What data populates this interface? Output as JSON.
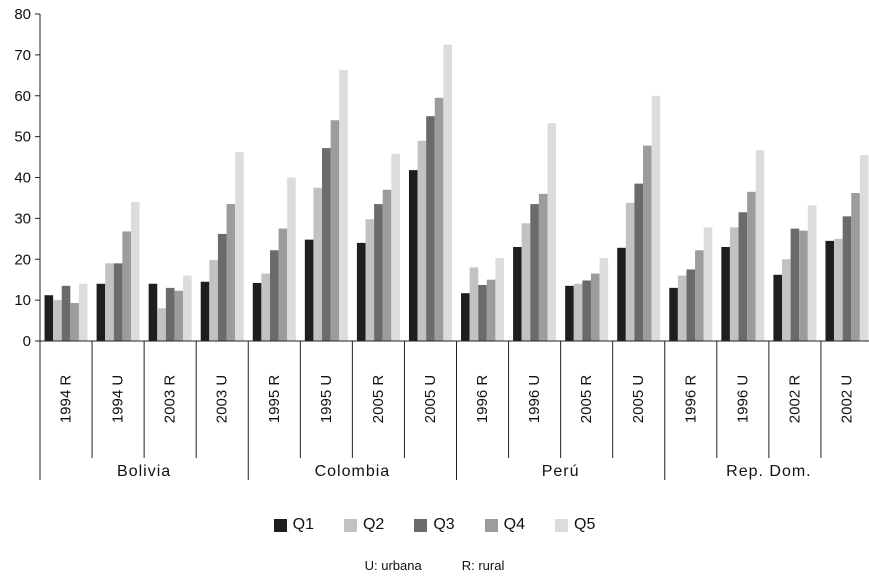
{
  "chart_data": {
    "type": "bar",
    "ylim": [
      0,
      80
    ],
    "yticks": [
      0,
      10,
      20,
      30,
      40,
      50,
      60,
      70,
      80
    ],
    "groups": [
      {
        "name": "Bolivia",
        "subgroups": [
          "1994 R",
          "1994 U",
          "2003 R",
          "2003 U"
        ]
      },
      {
        "name": "Colombia",
        "subgroups": [
          "1995 R",
          "1995 U",
          "2005 R",
          "2005 U"
        ]
      },
      {
        "name": "Perú",
        "subgroups": [
          "1996 R",
          "1996 U",
          "2005 R",
          "2005 U"
        ]
      },
      {
        "name": "Rep. Dom.",
        "subgroups": [
          "1996 R",
          "1996 U",
          "2002 R",
          "2002 U"
        ]
      }
    ],
    "series": [
      {
        "name": "Q1",
        "color": "#1e1e1e",
        "values": [
          11.2,
          14.0,
          14.0,
          14.5,
          14.2,
          24.8,
          24.0,
          41.8,
          11.7,
          23.0,
          13.5,
          22.8,
          13.0,
          23.0,
          16.2,
          24.5
        ]
      },
      {
        "name": "Q2",
        "color": "#c2c2c2",
        "values": [
          10.0,
          19.0,
          8.0,
          19.8,
          16.5,
          37.5,
          29.8,
          49.0,
          18.0,
          28.8,
          14.0,
          33.8,
          16.0,
          27.8,
          20.0,
          25.0
        ]
      },
      {
        "name": "Q3",
        "color": "#6b6b6b",
        "values": [
          13.5,
          19.0,
          13.0,
          26.2,
          22.2,
          47.2,
          33.5,
          55.0,
          13.7,
          33.5,
          14.8,
          38.5,
          17.5,
          31.5,
          27.5,
          30.5
        ]
      },
      {
        "name": "Q4",
        "color": "#9c9c9c",
        "values": [
          9.3,
          26.8,
          12.3,
          33.5,
          27.5,
          54.0,
          37.0,
          59.5,
          15.0,
          36.0,
          16.5,
          47.8,
          22.2,
          36.5,
          27.0,
          36.2
        ]
      },
      {
        "name": "Q5",
        "color": "#dcdcdc",
        "values": [
          14.0,
          34.0,
          16.0,
          46.2,
          40.0,
          66.3,
          45.8,
          72.5,
          20.3,
          53.3,
          20.3,
          60.0,
          27.8,
          46.7,
          33.2,
          45.5
        ]
      }
    ]
  },
  "note": {
    "urbana": "U: urbana",
    "rural": "R: rural"
  }
}
